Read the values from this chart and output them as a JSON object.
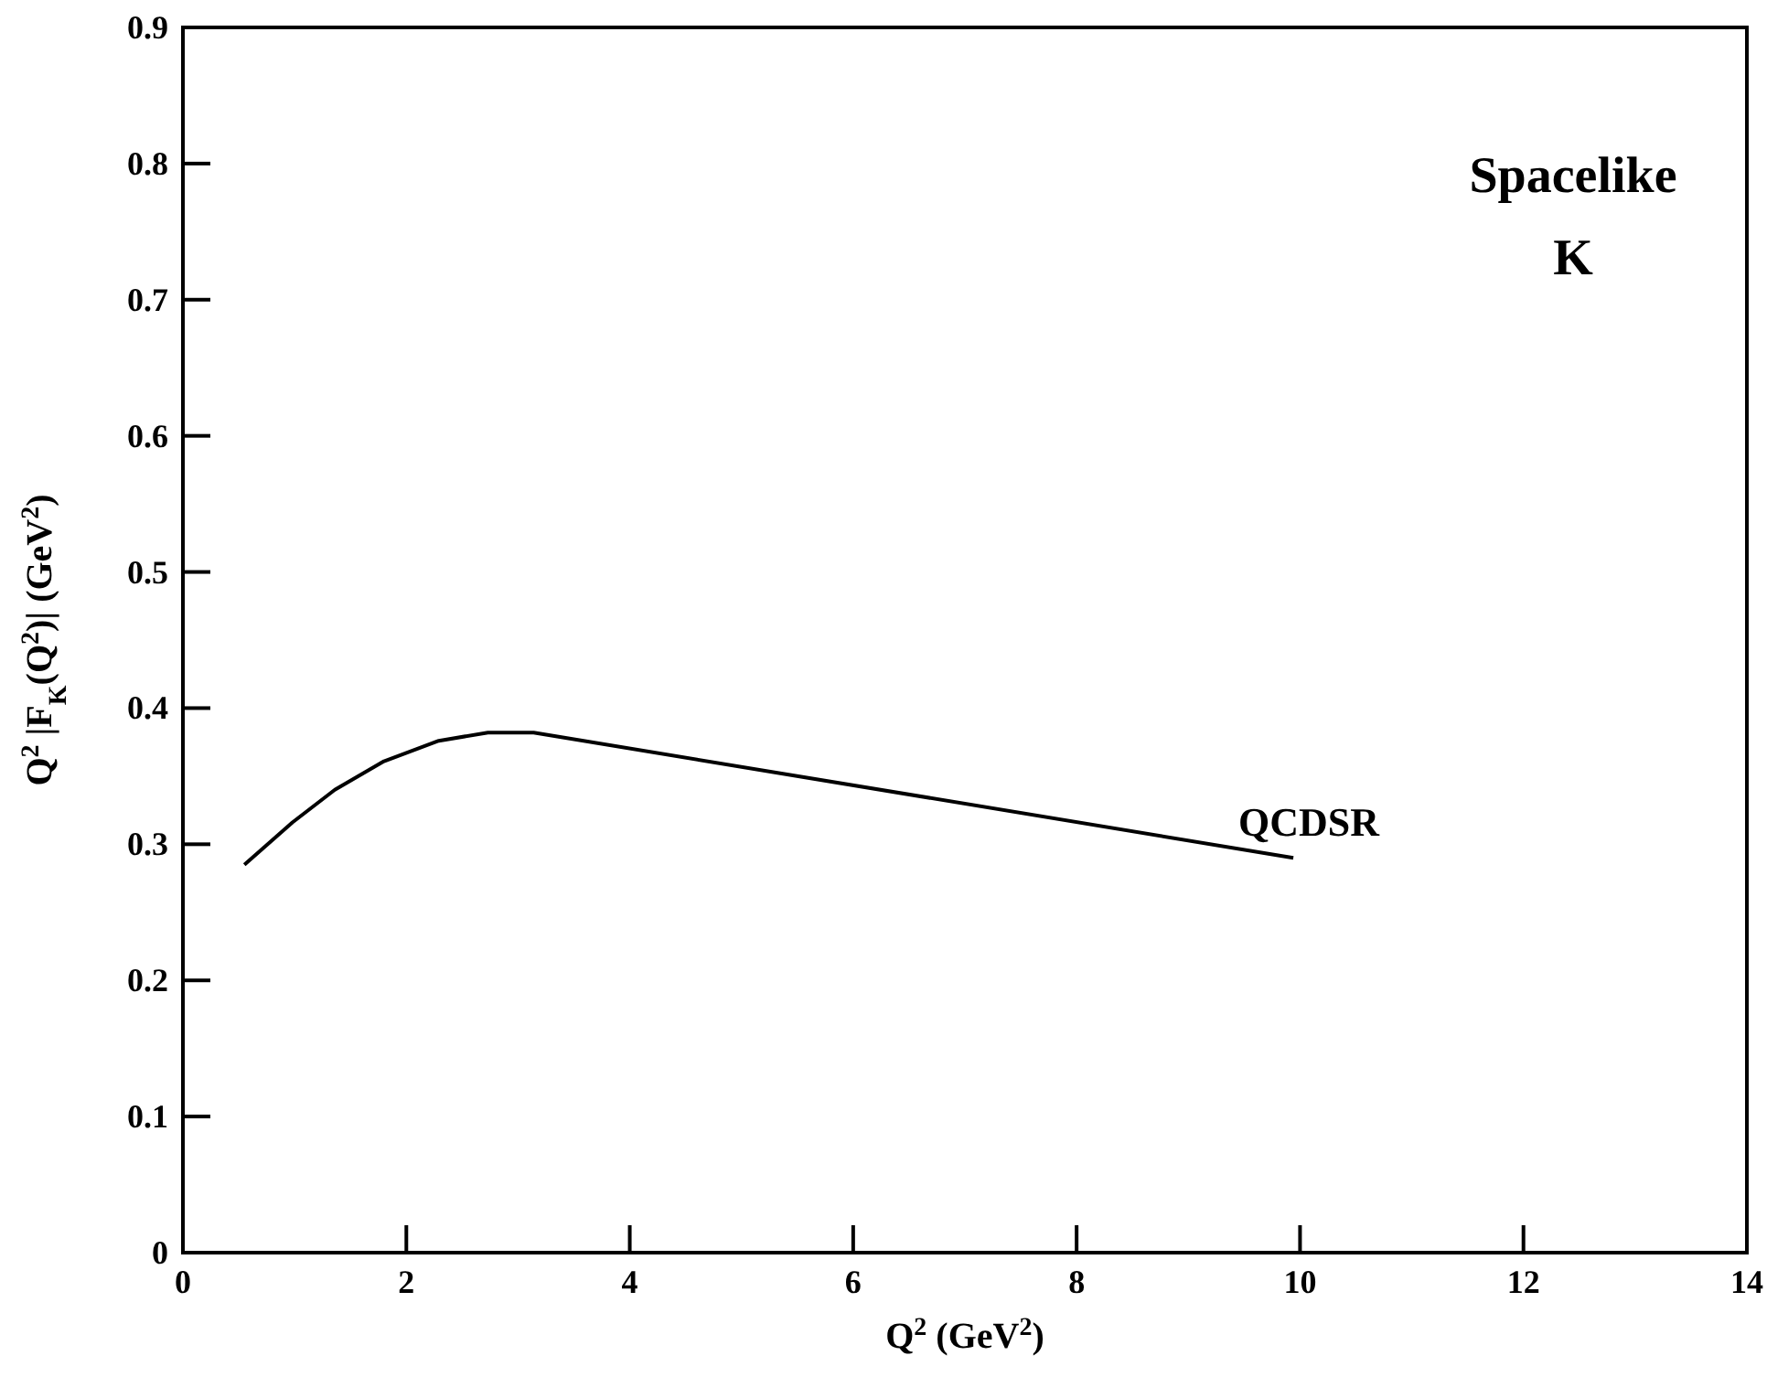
{
  "chart_data": {
    "type": "line",
    "xlabel": "Q$^{2}$  (GeV$^{2}$)",
    "ylabel": "Q$^{2}$ |F$_{K}$(Q$^{2}$)|  (GeV$^{2}$)",
    "xlim": [
      0,
      14
    ],
    "ylim": [
      0,
      0.9
    ],
    "xticks": [
      0,
      2,
      4,
      6,
      8,
      10,
      12,
      14
    ],
    "yticks": [
      0,
      0.1,
      0.2,
      0.3,
      0.4,
      0.5,
      0.6,
      0.7,
      0.8,
      0.9
    ],
    "grid": false,
    "legend": false,
    "marker": "none",
    "line_style": "solid",
    "series": [
      {
        "name": "QCDSR",
        "color": "#000000",
        "x": [
          0.55,
          0.98,
          1.36,
          1.8,
          2.29,
          2.73,
          3.14,
          9.94
        ],
        "values": [
          0.285,
          0.316,
          0.34,
          0.361,
          0.376,
          0.382,
          0.382,
          0.29
        ]
      }
    ],
    "annotations": [
      "Spacelike",
      "K"
    ]
  }
}
